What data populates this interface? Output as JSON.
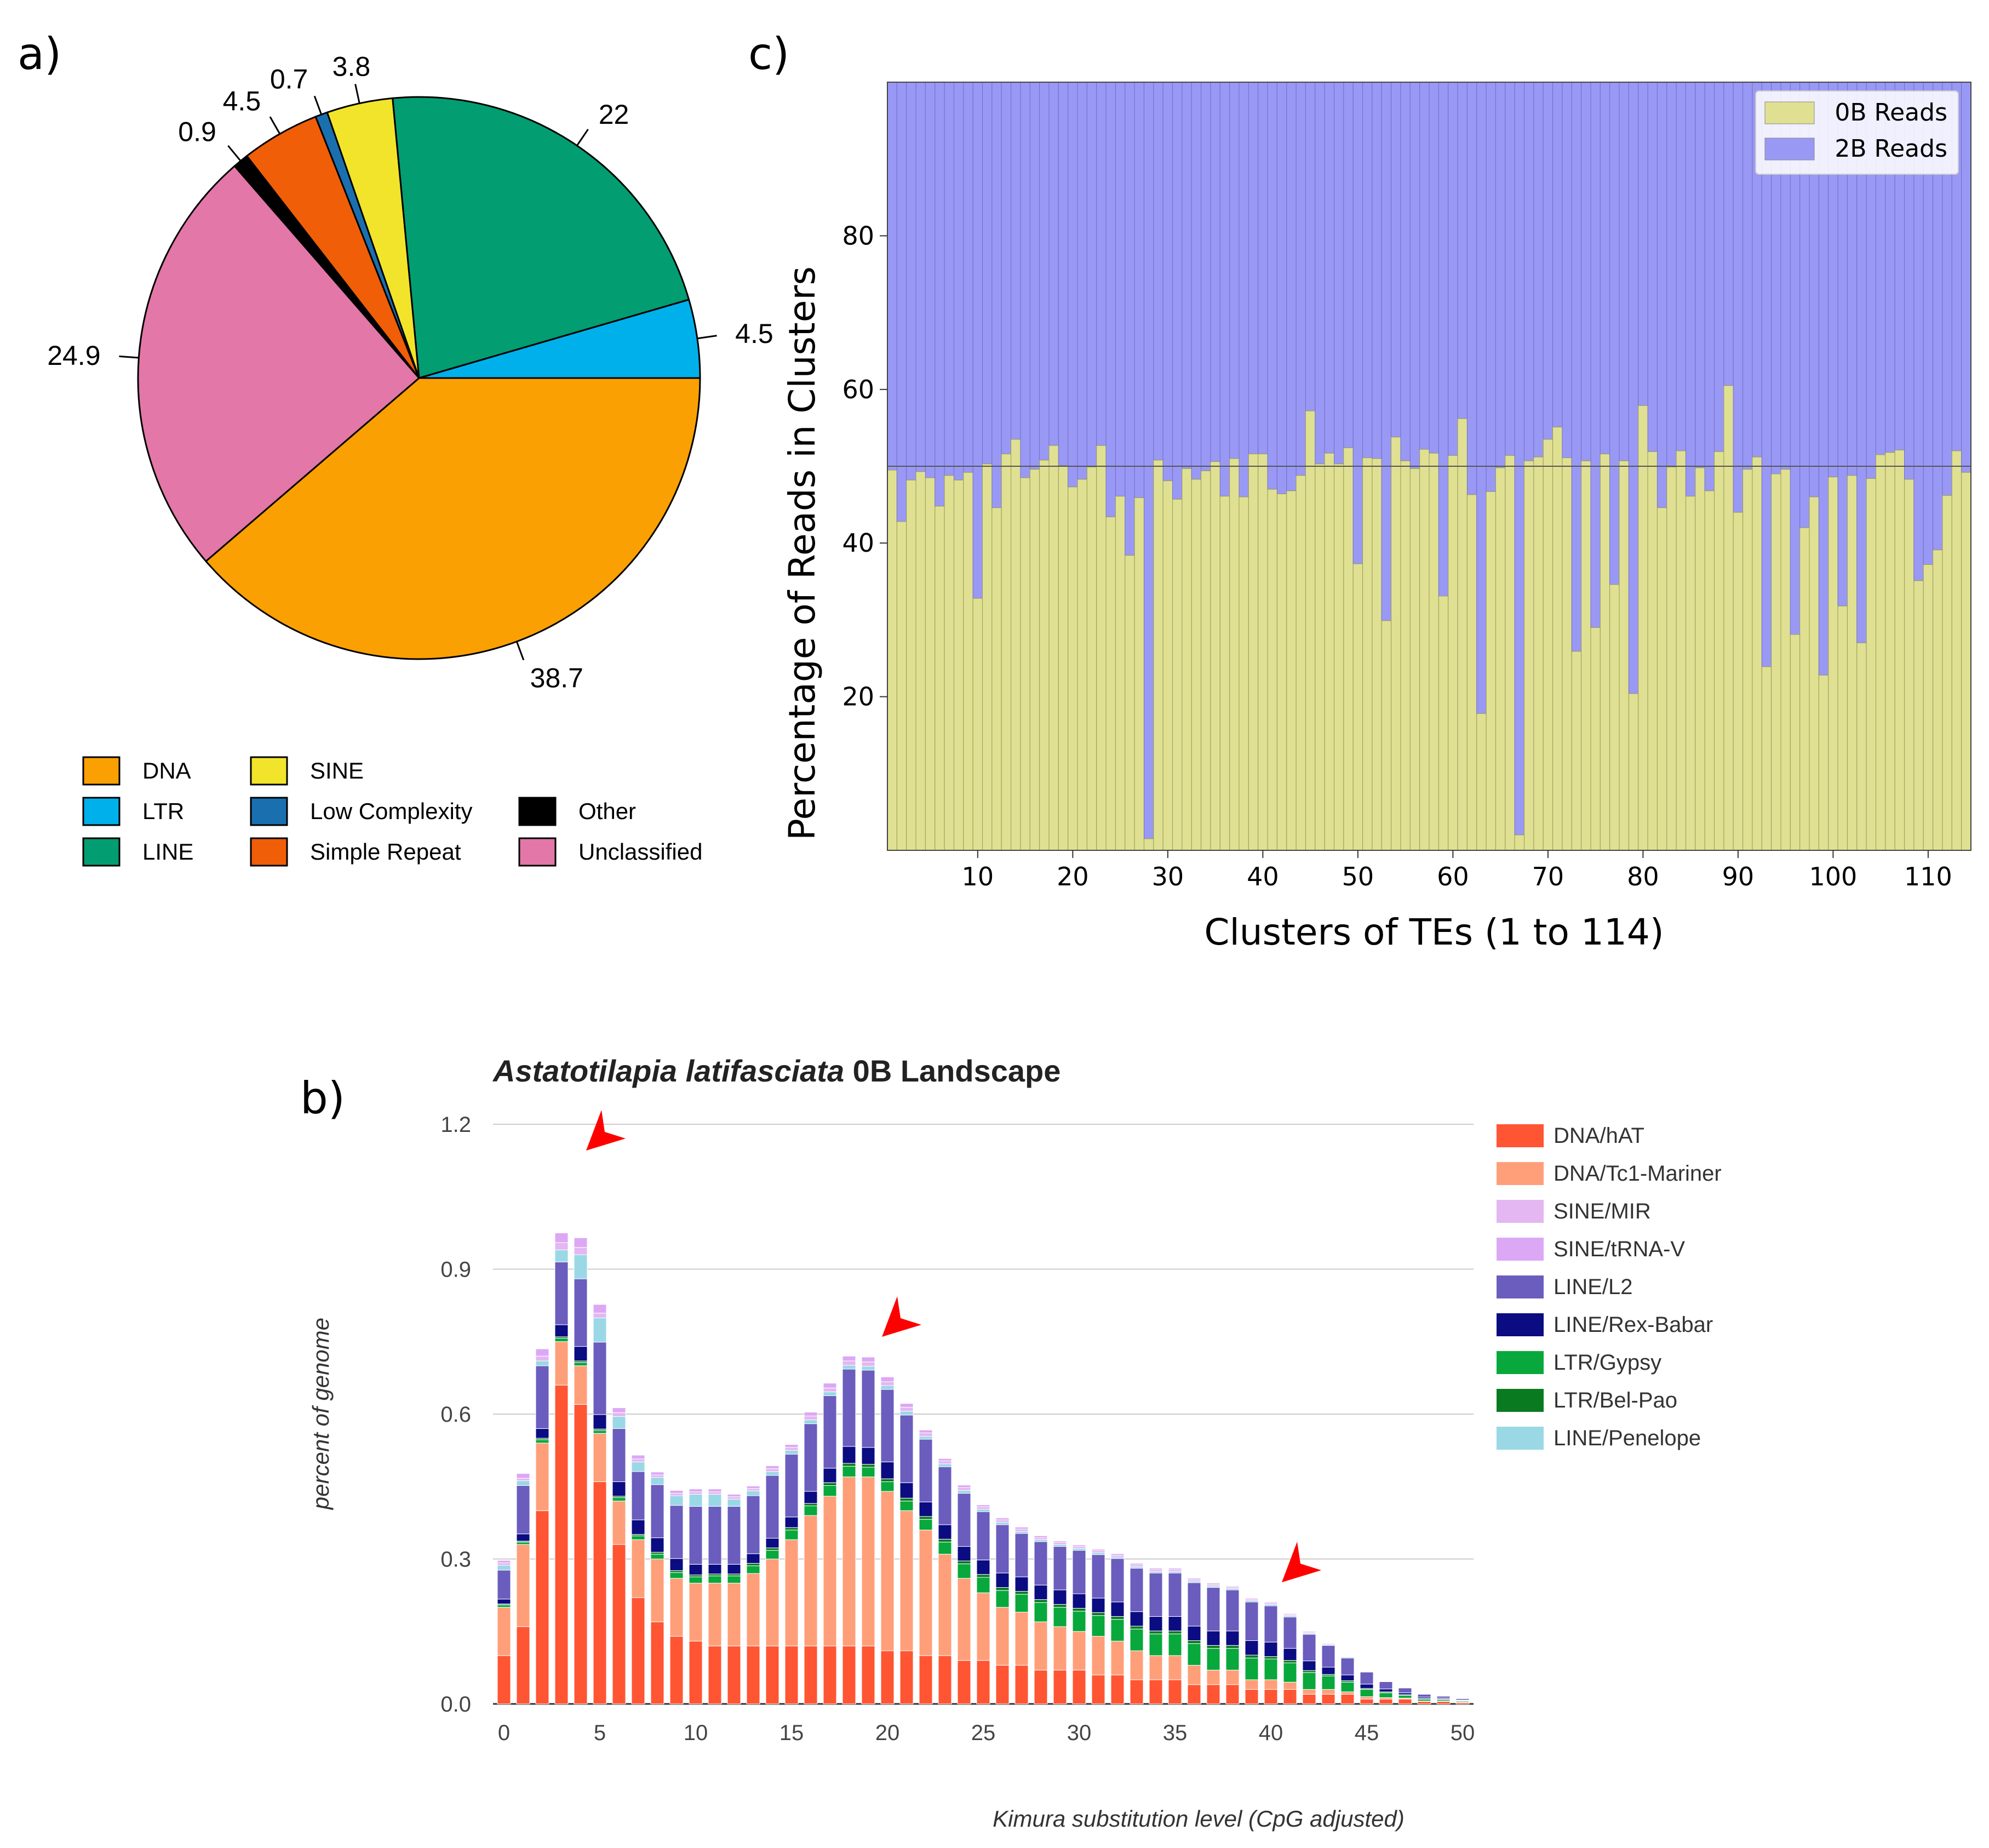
{
  "panels": {
    "a": "a)",
    "b": "b)",
    "c": "c)"
  },
  "pie": {
    "chart_data": {
      "type": "pie",
      "title": "",
      "slices": [
        {
          "label": "DNA",
          "value": 38.7,
          "color": "#FBA003",
          "value_label": "38.7"
        },
        {
          "label": "Unclassified",
          "value": 24.9,
          "color": "#E277A8",
          "value_label": "24.9"
        },
        {
          "label": "Other",
          "value": 0.9,
          "color": "#000000",
          "value_label": "0.9"
        },
        {
          "label": "Simple Repeat",
          "value": 4.5,
          "color": "#F05E07",
          "value_label": "4.5"
        },
        {
          "label": "Low Complexity",
          "value": 0.7,
          "color": "#1A6FAF",
          "value_label": "0.7"
        },
        {
          "label": "SINE",
          "value": 3.8,
          "color": "#F2E42B",
          "value_label": "3.8"
        },
        {
          "label": "LINE",
          "value": 22,
          "color": "#039D72",
          "value_label": "22"
        },
        {
          "label": "LTR",
          "value": 4.5,
          "color": "#00B0EB",
          "value_label": "4.5"
        }
      ],
      "legend": [
        {
          "label": "DNA",
          "color": "#FBA003"
        },
        {
          "label": "LTR",
          "color": "#00B0EB"
        },
        {
          "label": "LINE",
          "color": "#039D72"
        },
        {
          "label": "SINE",
          "color": "#F2E42B"
        },
        {
          "label": "Low Complexity",
          "color": "#1A6FAF"
        },
        {
          "label": "Simple Repeat",
          "color": "#F05E07"
        },
        {
          "label": "Other",
          "color": "#000000"
        },
        {
          "label": "Unclassified",
          "color": "#E277A8"
        }
      ]
    }
  },
  "landscape": {
    "chart_data": {
      "type": "bar",
      "stacked": true,
      "title_italic": "Astatotilapia latifasciata",
      "title_rest": " 0B Landscape",
      "xlabel": "Kimura substitution level (CpG adjusted)",
      "ylabel": "percent of genome",
      "ylim": [
        0,
        1.2
      ],
      "yticks": [
        "0.0",
        "0.3",
        "0.6",
        "0.9",
        "1.2"
      ],
      "xticks": [
        "0",
        "5",
        "10",
        "15",
        "20",
        "25",
        "30",
        "35",
        "40",
        "45",
        "50"
      ],
      "x": [
        0,
        1,
        2,
        3,
        4,
        5,
        6,
        7,
        8,
        9,
        10,
        11,
        12,
        13,
        14,
        15,
        16,
        17,
        18,
        19,
        20,
        21,
        22,
        23,
        24,
        25,
        26,
        27,
        28,
        29,
        30,
        31,
        32,
        33,
        34,
        35,
        36,
        37,
        38,
        39,
        40,
        41,
        42,
        43,
        44,
        45,
        46,
        47,
        48,
        49,
        50
      ],
      "annotations": [
        "arrow at 4",
        "arrow at 19",
        "arrow at 40"
      ],
      "series": [
        {
          "name": "DNA/hAT",
          "color": "#FF5533",
          "values": [
            0.1,
            0.16,
            0.4,
            0.66,
            0.62,
            0.46,
            0.33,
            0.22,
            0.17,
            0.14,
            0.13,
            0.12,
            0.12,
            0.12,
            0.12,
            0.12,
            0.12,
            0.12,
            0.12,
            0.12,
            0.11,
            0.11,
            0.1,
            0.1,
            0.09,
            0.09,
            0.08,
            0.08,
            0.07,
            0.07,
            0.07,
            0.06,
            0.06,
            0.05,
            0.05,
            0.05,
            0.04,
            0.04,
            0.04,
            0.03,
            0.03,
            0.03,
            0.02,
            0.02,
            0.02,
            0.01,
            0.01,
            0.01,
            0.005,
            0.005,
            0.003
          ]
        },
        {
          "name": "DNA/Tc1-Mariner",
          "color": "#FF9F7A",
          "values": [
            0.1,
            0.17,
            0.14,
            0.09,
            0.08,
            0.1,
            0.09,
            0.12,
            0.13,
            0.12,
            0.12,
            0.13,
            0.13,
            0.15,
            0.18,
            0.22,
            0.27,
            0.31,
            0.35,
            0.35,
            0.33,
            0.29,
            0.26,
            0.21,
            0.17,
            0.14,
            0.12,
            0.11,
            0.1,
            0.09,
            0.08,
            0.08,
            0.07,
            0.06,
            0.05,
            0.05,
            0.04,
            0.03,
            0.03,
            0.02,
            0.02,
            0.015,
            0.01,
            0.01,
            0.005,
            0.005,
            0.003,
            0.002,
            0.001,
            0.001,
            0.001
          ]
        },
        {
          "name": "LTR/Gypsy",
          "color": "#08A83C",
          "values": [
            0.005,
            0.005,
            0.007,
            0.007,
            0.007,
            0.006,
            0.007,
            0.008,
            0.01,
            0.012,
            0.013,
            0.015,
            0.015,
            0.016,
            0.018,
            0.02,
            0.02,
            0.022,
            0.022,
            0.02,
            0.02,
            0.02,
            0.022,
            0.025,
            0.03,
            0.032,
            0.035,
            0.037,
            0.04,
            0.04,
            0.042,
            0.043,
            0.045,
            0.045,
            0.045,
            0.045,
            0.045,
            0.045,
            0.045,
            0.045,
            0.043,
            0.04,
            0.035,
            0.028,
            0.02,
            0.015,
            0.01,
            0.006,
            0.004,
            0.003,
            0.002
          ]
        },
        {
          "name": "LTR/Bel-Pao",
          "color": "#0A7A20",
          "values": [
            0.002,
            0.002,
            0.003,
            0.003,
            0.003,
            0.003,
            0.003,
            0.003,
            0.004,
            0.004,
            0.004,
            0.004,
            0.004,
            0.005,
            0.005,
            0.005,
            0.005,
            0.006,
            0.006,
            0.006,
            0.006,
            0.006,
            0.006,
            0.006,
            0.006,
            0.006,
            0.006,
            0.006,
            0.006,
            0.006,
            0.006,
            0.006,
            0.006,
            0.006,
            0.006,
            0.006,
            0.006,
            0.006,
            0.006,
            0.006,
            0.005,
            0.005,
            0.004,
            0.003,
            0.003,
            0.002,
            0.002,
            0.001,
            0.001,
            0.001,
            0.001
          ]
        },
        {
          "name": "LINE/Rex-Babar",
          "color": "#0B0B82",
          "values": [
            0.01,
            0.015,
            0.02,
            0.025,
            0.03,
            0.03,
            0.03,
            0.03,
            0.03,
            0.025,
            0.022,
            0.02,
            0.02,
            0.02,
            0.02,
            0.022,
            0.025,
            0.03,
            0.035,
            0.035,
            0.035,
            0.032,
            0.03,
            0.03,
            0.03,
            0.03,
            0.03,
            0.03,
            0.03,
            0.03,
            0.03,
            0.03,
            0.03,
            0.03,
            0.03,
            0.03,
            0.03,
            0.03,
            0.03,
            0.03,
            0.03,
            0.025,
            0.02,
            0.015,
            0.012,
            0.009,
            0.006,
            0.004,
            0.003,
            0.002,
            0.001
          ]
        },
        {
          "name": "LINE/L2",
          "color": "#6A5DBD",
          "values": [
            0.06,
            0.1,
            0.13,
            0.13,
            0.14,
            0.15,
            0.11,
            0.1,
            0.11,
            0.11,
            0.12,
            0.12,
            0.12,
            0.12,
            0.13,
            0.13,
            0.14,
            0.15,
            0.16,
            0.16,
            0.15,
            0.14,
            0.13,
            0.12,
            0.11,
            0.1,
            0.1,
            0.09,
            0.09,
            0.09,
            0.09,
            0.09,
            0.09,
            0.09,
            0.09,
            0.09,
            0.09,
            0.09,
            0.085,
            0.08,
            0.075,
            0.065,
            0.055,
            0.045,
            0.035,
            0.025,
            0.015,
            0.01,
            0.006,
            0.004,
            0.003
          ]
        },
        {
          "name": "LINE/Penelope",
          "color": "#9AD8E6",
          "values": [
            0.01,
            0.01,
            0.01,
            0.025,
            0.05,
            0.05,
            0.025,
            0.02,
            0.015,
            0.02,
            0.025,
            0.025,
            0.015,
            0.01,
            0.008,
            0.008,
            0.008,
            0.008,
            0.008,
            0.008,
            0.008,
            0.008,
            0.006,
            0.006,
            0.006,
            0.005,
            0.005,
            0.004,
            0.004,
            0.004,
            0.004,
            0.004,
            0.003,
            0.003,
            0.003,
            0.003,
            0.003,
            0.003,
            0.003,
            0.003,
            0.003,
            0.003,
            0.002,
            0.002,
            0.002,
            0.001,
            0.001,
            0.001,
            0.001,
            0.001,
            0.001
          ]
        },
        {
          "name": "SINE/MIR",
          "color": "#E4B6F2",
          "values": [
            0.005,
            0.005,
            0.01,
            0.015,
            0.015,
            0.01,
            0.008,
            0.006,
            0.005,
            0.005,
            0.005,
            0.005,
            0.005,
            0.005,
            0.006,
            0.006,
            0.008,
            0.008,
            0.009,
            0.009,
            0.008,
            0.008,
            0.007,
            0.006,
            0.006,
            0.005,
            0.005,
            0.005,
            0.004,
            0.004,
            0.004,
            0.004,
            0.004,
            0.004,
            0.004,
            0.004,
            0.003,
            0.003,
            0.003,
            0.003,
            0.003,
            0.002,
            0.002,
            0.002,
            0.001,
            0.001,
            0.001,
            0.001,
            0.001,
            0.001,
            0.001
          ]
        },
        {
          "name": "SINE/tRNA-V",
          "color": "#DCA8F5",
          "values": [
            0.005,
            0.01,
            0.015,
            0.02,
            0.02,
            0.018,
            0.01,
            0.008,
            0.006,
            0.006,
            0.006,
            0.006,
            0.005,
            0.005,
            0.006,
            0.006,
            0.008,
            0.01,
            0.01,
            0.01,
            0.01,
            0.008,
            0.006,
            0.005,
            0.005,
            0.004,
            0.004,
            0.004,
            0.004,
            0.003,
            0.003,
            0.003,
            0.003,
            0.003,
            0.003,
            0.003,
            0.003,
            0.003,
            0.002,
            0.002,
            0.002,
            0.002,
            0.002,
            0.001,
            0.001,
            0.001,
            0.001,
            0.001,
            0.001,
            0.001,
            0.001
          ]
        }
      ],
      "legend_order": [
        "DNA/hAT",
        "DNA/Tc1-Mariner",
        "SINE/MIR",
        "SINE/tRNA-V",
        "LINE/L2",
        "LINE/Rex-Babar",
        "LTR/Gypsy",
        "LTR/Bel-Pao",
        "LINE/Penelope"
      ]
    }
  },
  "clusters": {
    "chart_data": {
      "type": "bar",
      "stacked": true,
      "xlabel": "Clusters of TEs (1 to 114)",
      "ylabel": "Percentage of Reads in Clusters",
      "ylim": [
        0,
        100
      ],
      "xlim": [
        0.5,
        114.5
      ],
      "yticks": [
        "20",
        "40",
        "60",
        "80"
      ],
      "xticks": [
        "10",
        "20",
        "30",
        "40",
        "50",
        "60",
        "70",
        "80",
        "90",
        "100",
        "110"
      ],
      "reference_line": 50,
      "series": [
        {
          "name": "0B Reads",
          "color": "#E0E092"
        },
        {
          "name": "2B Reads",
          "color": "#9999F5"
        }
      ],
      "values_0B": [
        49.5,
        42.8,
        48.2,
        49.3,
        48.5,
        44.8,
        48.8,
        48.2,
        49.2,
        32.8,
        50.3,
        44.6,
        51.6,
        53.5,
        48.5,
        49.6,
        50.8,
        52.7,
        50.1,
        47.3,
        48.3,
        49.9,
        52.7,
        43.4,
        46.1,
        38.4,
        45.9,
        1.5,
        50.8,
        48.1,
        45.7,
        49.7,
        48.3,
        49.4,
        50.6,
        46.1,
        51.0,
        46.0,
        51.6,
        51.6,
        47.0,
        46.4,
        46.8,
        48.8,
        57.2,
        50.3,
        51.7,
        50.3,
        52.4,
        37.3,
        51.1,
        51.0,
        29.9,
        53.8,
        50.7,
        49.7,
        52.2,
        51.7,
        33.1,
        51.4,
        56.2,
        46.3,
        17.8,
        46.7,
        49.8,
        51.4,
        2.0,
        50.7,
        51.2,
        53.5,
        55.1,
        51.1,
        25.9,
        50.7,
        29.0,
        51.6,
        34.6,
        50.7,
        20.4,
        57.9,
        51.9,
        44.6,
        49.9,
        52.0,
        46.1,
        49.8,
        46.8,
        51.9,
        60.5,
        44.0,
        49.6,
        51.2,
        23.9,
        49.0,
        49.6,
        28.1,
        42.0,
        46.0,
        22.8,
        48.6,
        31.8,
        48.8,
        27.0,
        48.4,
        51.5,
        51.8,
        52.1,
        48.3,
        35.1,
        37.2,
        39.1,
        46.2,
        52.0,
        49.2
      ]
    }
  }
}
